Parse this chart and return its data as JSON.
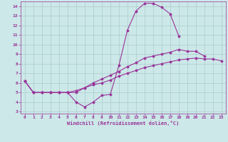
{
  "xlabel": "Windchill (Refroidissement éolien,°C)",
  "bg_color": "#cce8e8",
  "line_color": "#993399",
  "grid_color": "#aacccc",
  "xlim": [
    -0.5,
    23.5
  ],
  "ylim": [
    2.8,
    14.5
  ],
  "xticks": [
    0,
    1,
    2,
    3,
    4,
    5,
    6,
    7,
    8,
    9,
    10,
    11,
    12,
    13,
    14,
    15,
    16,
    17,
    18,
    19,
    20,
    21,
    22,
    23
  ],
  "yticks": [
    3,
    4,
    5,
    6,
    7,
    8,
    9,
    10,
    11,
    12,
    13,
    14
  ],
  "line1_y": [
    6.2,
    5.0,
    5.0,
    5.0,
    5.0,
    5.0,
    4.0,
    3.5,
    4.0,
    4.7,
    4.8,
    7.8,
    11.5,
    13.5,
    14.3,
    14.3,
    13.9,
    13.2,
    10.9,
    null,
    null,
    null,
    null,
    null
  ],
  "line2_y": [
    6.2,
    5.0,
    5.0,
    5.0,
    5.0,
    5.0,
    5.0,
    5.5,
    6.0,
    6.4,
    6.8,
    7.2,
    7.7,
    8.1,
    8.6,
    8.8,
    9.0,
    9.2,
    9.5,
    9.3,
    9.3,
    8.8,
    null,
    null
  ],
  "line3_y": [
    6.2,
    5.0,
    5.0,
    5.0,
    5.0,
    5.0,
    5.2,
    5.5,
    5.8,
    6.0,
    6.3,
    6.7,
    7.0,
    7.3,
    7.6,
    7.8,
    8.0,
    8.2,
    8.4,
    8.5,
    8.6,
    8.5,
    8.5,
    8.3
  ]
}
